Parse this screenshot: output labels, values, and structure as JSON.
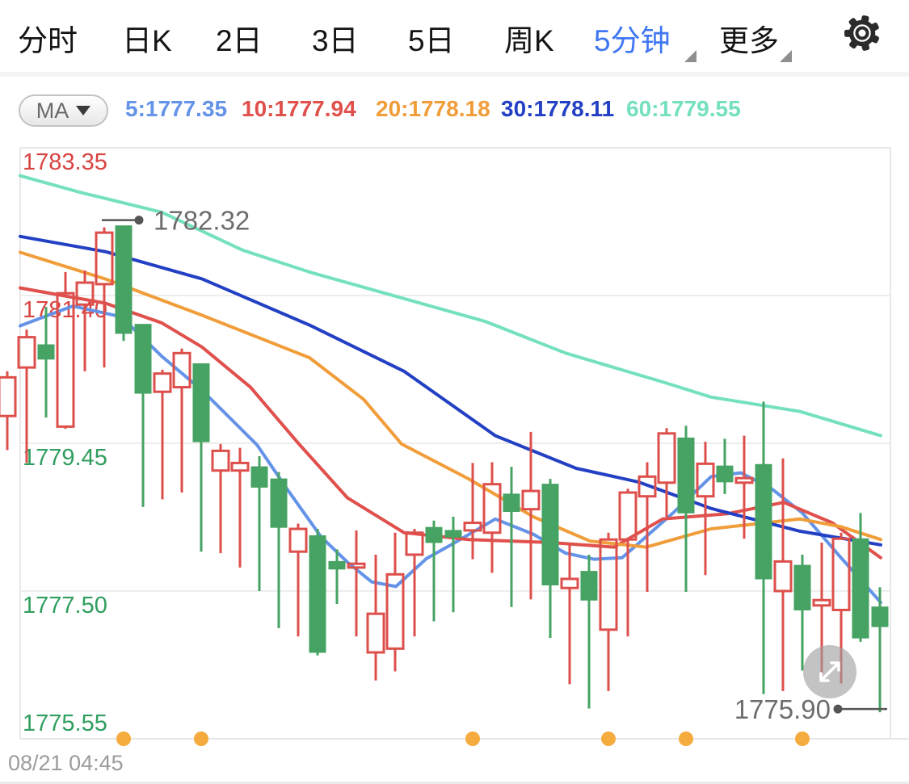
{
  "nav": {
    "items": [
      {
        "label": "分时",
        "selected": false,
        "dropdown": false
      },
      {
        "label": "日K",
        "selected": false,
        "dropdown": false
      },
      {
        "label": "2日",
        "selected": false,
        "dropdown": false
      },
      {
        "label": "3日",
        "selected": false,
        "dropdown": false
      },
      {
        "label": "5日",
        "selected": false,
        "dropdown": false
      },
      {
        "label": "周K",
        "selected": false,
        "dropdown": false
      },
      {
        "label": "5分钟",
        "selected": true,
        "dropdown": true
      },
      {
        "label": "更多",
        "selected": false,
        "dropdown": true
      }
    ],
    "selected_color": "#4077f2",
    "settings_icon": "gear-icon"
  },
  "indicator_bar": {
    "ma_button_label": "MA",
    "ma_button_caret": "caret-down-icon"
  },
  "colors": {
    "up": "#dd4f4b",
    "down": "#46a363",
    "axis_label_red": "#d84442",
    "axis_label_green": "#2f9e5e",
    "annotation_gray": "#6d6d6d",
    "session_dot_orange": "#f5ab3d",
    "gridline": "#ededed",
    "plot_border": "#e7e7e7"
  },
  "chart_data": {
    "type": "candlestick",
    "title": "",
    "xlabel": "08/21 04:45",
    "ylabel": "",
    "grid": true,
    "y_axis": {
      "min": 1775.55,
      "max": 1783.35,
      "labels": [
        {
          "text": "1783.35",
          "price": 1783.35,
          "color": "#d84442"
        },
        {
          "text": "1781.40",
          "price": 1781.4,
          "color": "#d84442"
        },
        {
          "text": "1779.45",
          "price": 1779.45,
          "color": "#2f9e5e"
        },
        {
          "text": "1777.50",
          "price": 1777.5,
          "color": "#2f9e5e"
        },
        {
          "text": "1775.55",
          "price": 1775.55,
          "color": "#2f9e5e"
        }
      ]
    },
    "candles": [
      [
        1779.81,
        1780.4,
        1779.36,
        1780.32
      ],
      [
        1780.45,
        1780.95,
        1779.19,
        1780.85
      ],
      [
        1780.75,
        1781.25,
        1779.79,
        1780.56
      ],
      [
        1779.67,
        1781.71,
        1779.64,
        1781.43
      ],
      [
        1781.28,
        1781.73,
        1780.4,
        1781.57
      ],
      [
        1781.55,
        1782.3,
        1780.45,
        1782.23
      ],
      [
        1782.32,
        1782.32,
        1780.8,
        1780.9
      ],
      [
        1781.02,
        1781.02,
        1778.61,
        1780.11
      ],
      [
        1780.13,
        1780.42,
        1778.71,
        1780.37
      ],
      [
        1780.19,
        1780.7,
        1778.8,
        1780.64
      ],
      [
        1780.5,
        1780.5,
        1778.02,
        1779.47
      ],
      [
        1779.09,
        1779.44,
        1778.0,
        1779.35
      ],
      [
        1779.09,
        1779.39,
        1777.81,
        1779.19
      ],
      [
        1779.14,
        1779.28,
        1777.5,
        1778.87
      ],
      [
        1778.98,
        1779.07,
        1777.01,
        1778.34
      ],
      [
        1778.02,
        1778.39,
        1776.9,
        1778.32
      ],
      [
        1778.23,
        1778.32,
        1776.65,
        1776.69
      ],
      [
        1777.89,
        1778.05,
        1777.33,
        1777.79
      ],
      [
        1777.81,
        1778.3,
        1776.9,
        1777.86
      ],
      [
        1776.69,
        1777.98,
        1776.32,
        1777.2
      ],
      [
        1776.74,
        1778.27,
        1776.44,
        1777.72
      ],
      [
        1777.98,
        1778.32,
        1776.9,
        1778.27
      ],
      [
        1778.34,
        1778.43,
        1777.1,
        1778.14
      ],
      [
        1778.3,
        1778.48,
        1777.22,
        1778.21
      ],
      [
        1778.3,
        1779.19,
        1777.92,
        1778.4
      ],
      [
        1778.27,
        1779.2,
        1777.74,
        1778.91
      ],
      [
        1778.78,
        1779.14,
        1777.29,
        1778.55
      ],
      [
        1778.58,
        1779.6,
        1777.39,
        1778.82
      ],
      [
        1778.91,
        1778.98,
        1776.88,
        1777.58
      ],
      [
        1777.54,
        1778.11,
        1776.27,
        1777.66
      ],
      [
        1777.76,
        1777.98,
        1775.95,
        1777.38
      ],
      [
        1776.99,
        1778.27,
        1776.18,
        1778.18
      ],
      [
        1778.18,
        1778.85,
        1776.9,
        1778.8
      ],
      [
        1778.75,
        1779.2,
        1777.49,
        1779.01
      ],
      [
        1778.93,
        1779.65,
        1778.48,
        1779.58
      ],
      [
        1779.52,
        1779.68,
        1777.49,
        1778.53
      ],
      [
        1778.75,
        1779.47,
        1777.71,
        1779.18
      ],
      [
        1779.15,
        1779.51,
        1778.78,
        1778.94
      ],
      [
        1778.93,
        1779.55,
        1778.19,
        1778.99
      ],
      [
        1779.17,
        1780.0,
        1776.14,
        1777.66
      ],
      [
        1777.5,
        1779.25,
        1776.18,
        1777.89
      ],
      [
        1777.84,
        1777.98,
        1776.45,
        1777.25
      ],
      [
        1777.31,
        1778.14,
        1776.4,
        1777.38
      ],
      [
        1777.25,
        1778.27,
        1776.28,
        1778.19
      ],
      [
        1778.19,
        1778.53,
        1776.83,
        1776.88
      ],
      [
        1777.29,
        1777.55,
        1775.9,
        1777.03
      ]
    ],
    "ma_series": [
      {
        "name": "MA5",
        "period": 5,
        "value": "1777.35",
        "legend_label": "5:1777.35",
        "color": "#6493e8",
        "points": [
          [
            25,
            1781.0
          ],
          [
            90,
            1781.26
          ],
          [
            150,
            1781.12
          ],
          [
            200,
            1780.6
          ],
          [
            250,
            1780.15
          ],
          [
            318,
            1779.43
          ],
          [
            355,
            1778.85
          ],
          [
            397,
            1778.22
          ],
          [
            430,
            1777.88
          ],
          [
            460,
            1777.62
          ],
          [
            490,
            1777.56
          ],
          [
            528,
            1777.93
          ],
          [
            560,
            1778.12
          ],
          [
            613,
            1778.45
          ],
          [
            660,
            1778.25
          ],
          [
            700,
            1778.0
          ],
          [
            735,
            1777.92
          ],
          [
            770,
            1777.94
          ],
          [
            833,
            1778.53
          ],
          [
            880,
            1779.01
          ],
          [
            917,
            1779.06
          ],
          [
            955,
            1778.85
          ],
          [
            993,
            1778.53
          ],
          [
            1040,
            1777.95
          ],
          [
            1090,
            1777.35
          ]
        ]
      },
      {
        "name": "MA10",
        "period": 10,
        "value": "1777.94",
        "legend_label": "10:1777.94",
        "color": "#e0504c",
        "points": [
          [
            25,
            1781.5
          ],
          [
            130,
            1781.3
          ],
          [
            200,
            1781.04
          ],
          [
            250,
            1780.72
          ],
          [
            310,
            1780.19
          ],
          [
            370,
            1779.44
          ],
          [
            430,
            1778.73
          ],
          [
            500,
            1778.27
          ],
          [
            580,
            1778.18
          ],
          [
            680,
            1778.14
          ],
          [
            760,
            1778.08
          ],
          [
            820,
            1778.45
          ],
          [
            900,
            1778.52
          ],
          [
            970,
            1778.67
          ],
          [
            1030,
            1778.4
          ],
          [
            1090,
            1777.94
          ]
        ]
      },
      {
        "name": "MA20",
        "period": 20,
        "value": "1778.18",
        "legend_label": "20:1778.18",
        "color": "#f09d3a",
        "points": [
          [
            25,
            1781.97
          ],
          [
            130,
            1781.62
          ],
          [
            250,
            1781.14
          ],
          [
            383,
            1780.58
          ],
          [
            450,
            1780.03
          ],
          [
            497,
            1779.44
          ],
          [
            580,
            1778.98
          ],
          [
            660,
            1778.48
          ],
          [
            730,
            1778.16
          ],
          [
            800,
            1778.08
          ],
          [
            880,
            1778.32
          ],
          [
            990,
            1778.45
          ],
          [
            1040,
            1778.35
          ],
          [
            1090,
            1778.18
          ]
        ]
      },
      {
        "name": "MA30",
        "period": 30,
        "value": "1778.11",
        "legend_label": "30:1778.11",
        "color": "#2340c4",
        "points": [
          [
            25,
            1782.18
          ],
          [
            130,
            1781.98
          ],
          [
            250,
            1781.62
          ],
          [
            383,
            1781.01
          ],
          [
            500,
            1780.4
          ],
          [
            613,
            1779.55
          ],
          [
            713,
            1779.12
          ],
          [
            790,
            1778.94
          ],
          [
            880,
            1778.59
          ],
          [
            990,
            1778.29
          ],
          [
            1090,
            1778.11
          ]
        ]
      },
      {
        "name": "MA60",
        "period": 60,
        "value": "1779.55",
        "legend_label": "60:1779.55",
        "color": "#74e0bf",
        "points": [
          [
            25,
            1782.98
          ],
          [
            100,
            1782.76
          ],
          [
            200,
            1782.5
          ],
          [
            300,
            1782.0
          ],
          [
            383,
            1781.71
          ],
          [
            500,
            1781.36
          ],
          [
            600,
            1781.06
          ],
          [
            700,
            1780.64
          ],
          [
            760,
            1780.45
          ],
          [
            820,
            1780.26
          ],
          [
            880,
            1780.06
          ],
          [
            990,
            1779.87
          ],
          [
            1090,
            1779.55
          ]
        ]
      }
    ],
    "annotations": {
      "high": {
        "text": "1782.32",
        "price": 1782.32,
        "candle_index": 6
      },
      "low": {
        "text": "1775.90",
        "price": 1775.9,
        "candle_index": 45
      }
    },
    "session_dot_indices": [
      6,
      10,
      24,
      31,
      35,
      41
    ],
    "legend_position": "top"
  },
  "footer": {
    "timestamp": "08/21 04:45"
  }
}
